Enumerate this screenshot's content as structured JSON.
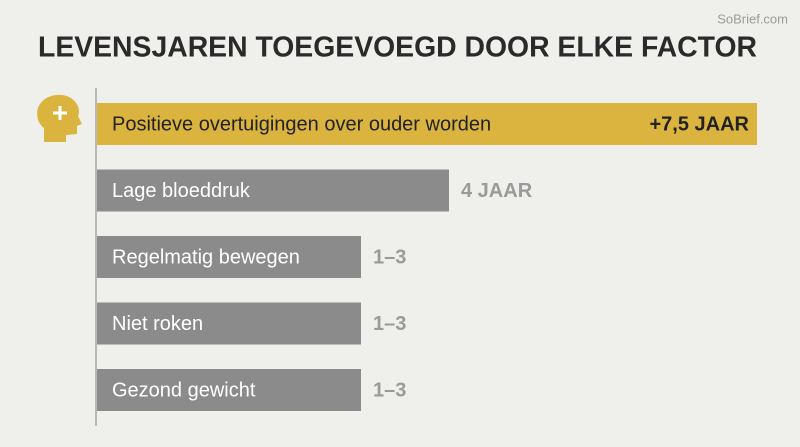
{
  "chart_data": {
    "type": "hbar",
    "title": "LEVENSJAREN TOEGEVOEGD DOOR ELKE FACTOR",
    "watermark": "SoBrief.com",
    "categories": [
      "Positieve overtuigingen over ouder worden",
      "Lage bloeddruk",
      "Regelmatig bewegen",
      "Niet roken",
      "Gezond gewicht"
    ],
    "values": [
      7.5,
      4,
      3,
      3,
      3
    ],
    "value_labels": [
      "+7,5 JAAR",
      "4 JAAR",
      "1–3",
      "1–3",
      "1–3"
    ],
    "colors": [
      "#dbb43f",
      "#8b8b8b",
      "#8b8b8b",
      "#8b8b8b",
      "#8b8b8b"
    ]
  }
}
